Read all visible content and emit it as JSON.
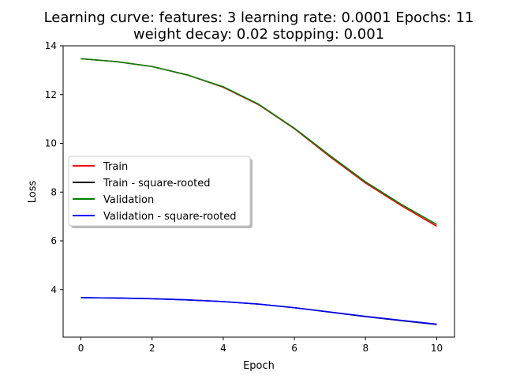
{
  "chart_data": {
    "type": "line",
    "title_line1": "Learning curve: features: 3 learning rate: 0.0001 Epochs: 11",
    "title_line2": "weight decay: 0.02 stopping: 0.001",
    "xlabel": "Epoch",
    "ylabel": "Loss",
    "xlim": [
      -0.5,
      10.5
    ],
    "ylim": [
      2.05,
      14.0
    ],
    "xticks": [
      0,
      2,
      4,
      6,
      8,
      10
    ],
    "yticks": [
      4,
      6,
      8,
      10,
      12,
      14
    ],
    "grid": false,
    "legend_position": "center-left",
    "x": [
      0,
      1,
      2,
      3,
      4,
      5,
      6,
      7,
      8,
      9,
      10
    ],
    "series": [
      {
        "name": "Train",
        "color": "#ff0000",
        "values": [
          13.47,
          13.35,
          13.15,
          12.8,
          12.3,
          11.58,
          10.6,
          9.45,
          8.37,
          7.45,
          6.6
        ]
      },
      {
        "name": "Train - square-rooted",
        "color": "#000000",
        "values": [
          3.67,
          3.654,
          3.626,
          3.578,
          3.507,
          3.403,
          3.256,
          3.074,
          2.893,
          2.729,
          2.569
        ]
      },
      {
        "name": "Validation",
        "color": "#008000",
        "values": [
          13.47,
          13.35,
          13.15,
          12.8,
          12.32,
          11.6,
          10.62,
          9.5,
          8.42,
          7.5,
          6.67
        ]
      },
      {
        "name": "Validation - square-rooted",
        "color": "#0000ff",
        "values": [
          3.67,
          3.654,
          3.626,
          3.578,
          3.51,
          3.406,
          3.259,
          3.082,
          2.902,
          2.739,
          2.583
        ]
      }
    ]
  }
}
